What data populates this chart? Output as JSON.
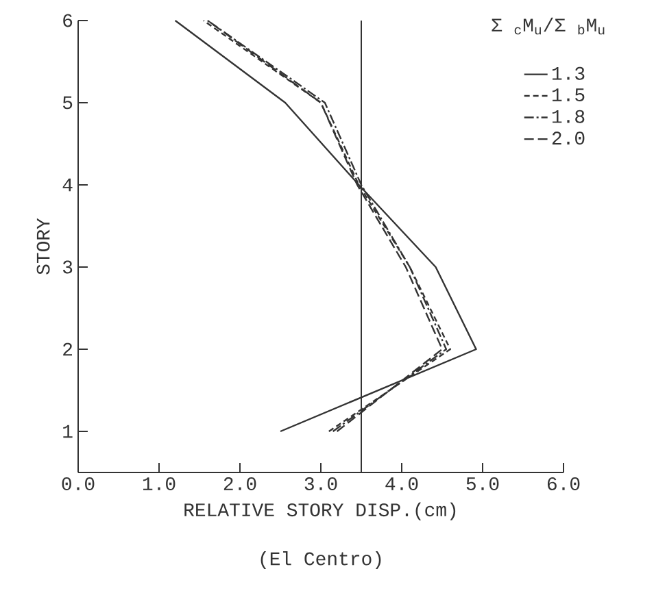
{
  "chart_data": {
    "type": "line",
    "xlabel": "RELATIVE STORY DISP.(cm)",
    "ylabel": "STORY",
    "legend_title": "Σ $_{c}$M$_{u}$/Σ $_{b}$M$_{u}$",
    "annotations": [
      "(El Centro)"
    ],
    "series": [
      {
        "name": "1.3",
        "color": "#333333",
        "line_style": "solid",
        "x": [
          2.5,
          4.92,
          4.42,
          3.47,
          2.56,
          1.2
        ],
        "values": [
          1,
          2,
          3,
          4,
          5,
          6
        ]
      },
      {
        "name": "1.5",
        "color": "#333333",
        "line_style": "dashed",
        "x": [
          3.1,
          4.6,
          4.1,
          3.47,
          3.0,
          1.55
        ],
        "values": [
          1,
          2,
          3,
          4,
          5,
          6
        ]
      },
      {
        "name": "1.8",
        "color": "#333333",
        "line_style": "dashdot",
        "x": [
          3.15,
          4.55,
          4.1,
          3.5,
          3.05,
          1.6
        ],
        "values": [
          1,
          2,
          3,
          4,
          5,
          6
        ]
      },
      {
        "name": "2.0",
        "color": "#333333",
        "line_style": "longdash",
        "x": [
          3.2,
          4.5,
          4.05,
          3.45,
          3.0,
          1.6
        ],
        "values": [
          1,
          2,
          3,
          4,
          5,
          6
        ]
      }
    ],
    "xlim": [
      0,
      6
    ],
    "ylim": [
      0.5,
      6
    ],
    "xticks": [
      {
        "value": 0,
        "label": "0.0"
      },
      {
        "value": 1,
        "label": "1.0"
      },
      {
        "value": 2,
        "label": "2.0"
      },
      {
        "value": 3,
        "label": "3.0"
      },
      {
        "value": 4,
        "label": "4.0"
      },
      {
        "value": 5,
        "label": "5.0"
      },
      {
        "value": 6,
        "label": "6.0"
      }
    ],
    "yticks": [
      1,
      2,
      3,
      4,
      5,
      6
    ],
    "ref_lines": [
      {
        "axis": "x",
        "value": 3.5,
        "color": "#333333"
      }
    ],
    "legend": "top right",
    "marker": "none"
  }
}
